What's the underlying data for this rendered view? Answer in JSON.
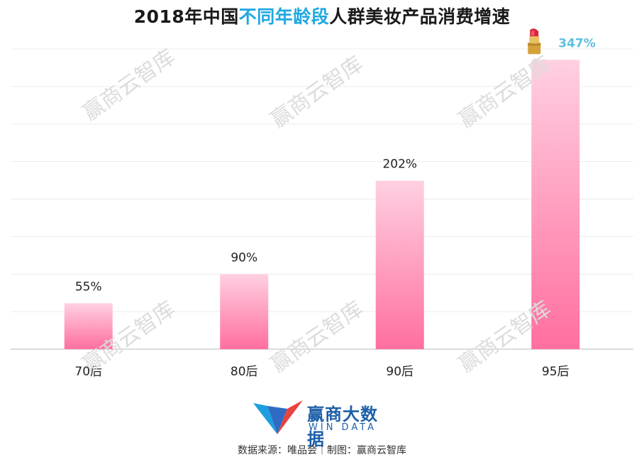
{
  "title": {
    "prefix": "2018年中国",
    "highlight": "不同年龄段",
    "suffix": "人群美妆产品消费增速"
  },
  "colors": {
    "highlight": "#1fa8e0",
    "bar_top": "#ffd0e2",
    "bar_bottom": "#ff6f9f",
    "last_label": "#5bc0e0"
  },
  "chart_data": {
    "type": "bar",
    "categories": [
      "70后",
      "80后",
      "90后",
      "95后"
    ],
    "values": [
      55,
      90,
      202,
      347
    ],
    "value_labels": [
      "55%",
      "90%",
      "202%",
      "347%"
    ],
    "ylim": [
      0,
      360
    ],
    "grid": true,
    "highlight_last": {
      "icon": "lipstick-icon"
    }
  },
  "watermark": "赢商云智库",
  "logo": {
    "cn": "赢商大数据",
    "en": "WIN DATA"
  },
  "source": "数据来源：唯品会｜制图：赢商云智库"
}
